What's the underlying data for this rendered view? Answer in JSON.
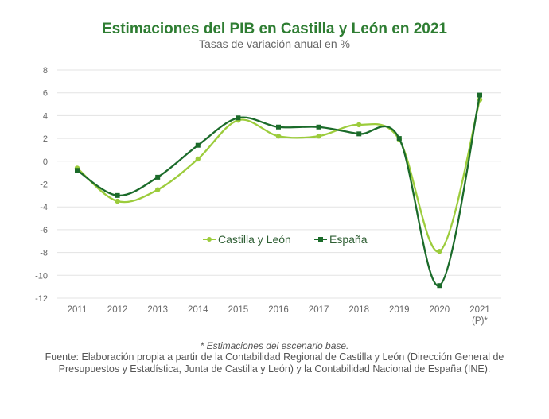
{
  "chart_data": {
    "type": "line",
    "title": "Estimaciones del PIB en Castilla y León en 2021",
    "subtitle": "Tasas de variación anual en %",
    "categories": [
      "2011",
      "2012",
      "2013",
      "2014",
      "2015",
      "2016",
      "2017",
      "2018",
      "2019",
      "2020",
      "2021\n(P)*"
    ],
    "yticks": [
      8,
      6,
      4,
      2,
      0,
      -2,
      -4,
      -6,
      -8,
      -10,
      -12
    ],
    "ylim": [
      -12,
      8
    ],
    "grid": true,
    "legend_position": "center",
    "series": [
      {
        "name": "Castilla y León",
        "color": "#9ccc3c",
        "values": [
          -0.6,
          -3.5,
          -2.5,
          0.2,
          3.6,
          2.2,
          2.2,
          3.2,
          1.9,
          -7.9,
          5.4
        ]
      },
      {
        "name": "España",
        "color": "#1b6b2a",
        "values": [
          -0.8,
          -3.0,
          -1.4,
          1.4,
          3.8,
          3.0,
          3.0,
          2.4,
          2.0,
          -10.9,
          5.8
        ]
      }
    ]
  },
  "footer": {
    "note": "* Estimaciones del escenario base.",
    "source": "Fuente: Elaboración propia a partir de la Contabilidad Regional de Castilla y León (Dirección General de Presupuestos y Estadística, Junta de Castilla y León) y la Contabilidad Nacional de España (INE)."
  }
}
